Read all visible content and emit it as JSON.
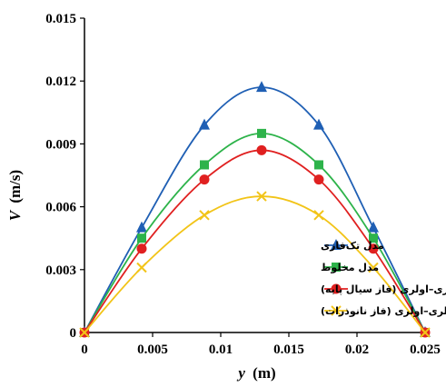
{
  "chart_data": {
    "type": "line",
    "xlabel_var": "y",
    "xlabel_unit": "(m)",
    "ylabel_var": "V",
    "ylabel_unit": "(m/s)",
    "xlim": [
      0,
      0.025
    ],
    "ylim": [
      0,
      0.015
    ],
    "x_ticks": [
      "0",
      "0.005",
      "0.01",
      "0.015",
      "0.02",
      "0.025"
    ],
    "y_ticks": [
      "0",
      "0.003",
      "0.006",
      "0.009",
      "0.012",
      "0.015"
    ],
    "grid": false,
    "legend_position": "bottom-right",
    "series": [
      {
        "name": "مدل تک‌فازی",
        "color": "#1f5fb4",
        "marker": "triangle",
        "x": [
          0,
          0.0042,
          0.0088,
          0.013,
          0.0172,
          0.0212,
          0.025
        ],
        "y": [
          0,
          0.005,
          0.0099,
          0.0117,
          0.0099,
          0.005,
          0
        ]
      },
      {
        "name": "مدل مخلوط",
        "color": "#2db34a",
        "marker": "square",
        "x": [
          0,
          0.0042,
          0.0088,
          0.013,
          0.0172,
          0.0212,
          0.025
        ],
        "y": [
          0,
          0.0045,
          0.008,
          0.0095,
          0.008,
          0.0045,
          0
        ]
      },
      {
        "name": "مدل اولری–اولری (فاز سیال پایه)",
        "color": "#e02020",
        "marker": "circle",
        "x": [
          0,
          0.0042,
          0.0088,
          0.013,
          0.0172,
          0.0212,
          0.025
        ],
        "y": [
          0,
          0.004,
          0.0073,
          0.0087,
          0.0073,
          0.004,
          0
        ]
      },
      {
        "name": "مدل اولری–اولری (فاز نانوذرات)",
        "color": "#f2c418",
        "marker": "x",
        "x": [
          0,
          0.0042,
          0.0088,
          0.013,
          0.0172,
          0.0212,
          0.025
        ],
        "y": [
          0,
          0.0031,
          0.0056,
          0.0065,
          0.0056,
          0.0031,
          0
        ]
      }
    ]
  }
}
